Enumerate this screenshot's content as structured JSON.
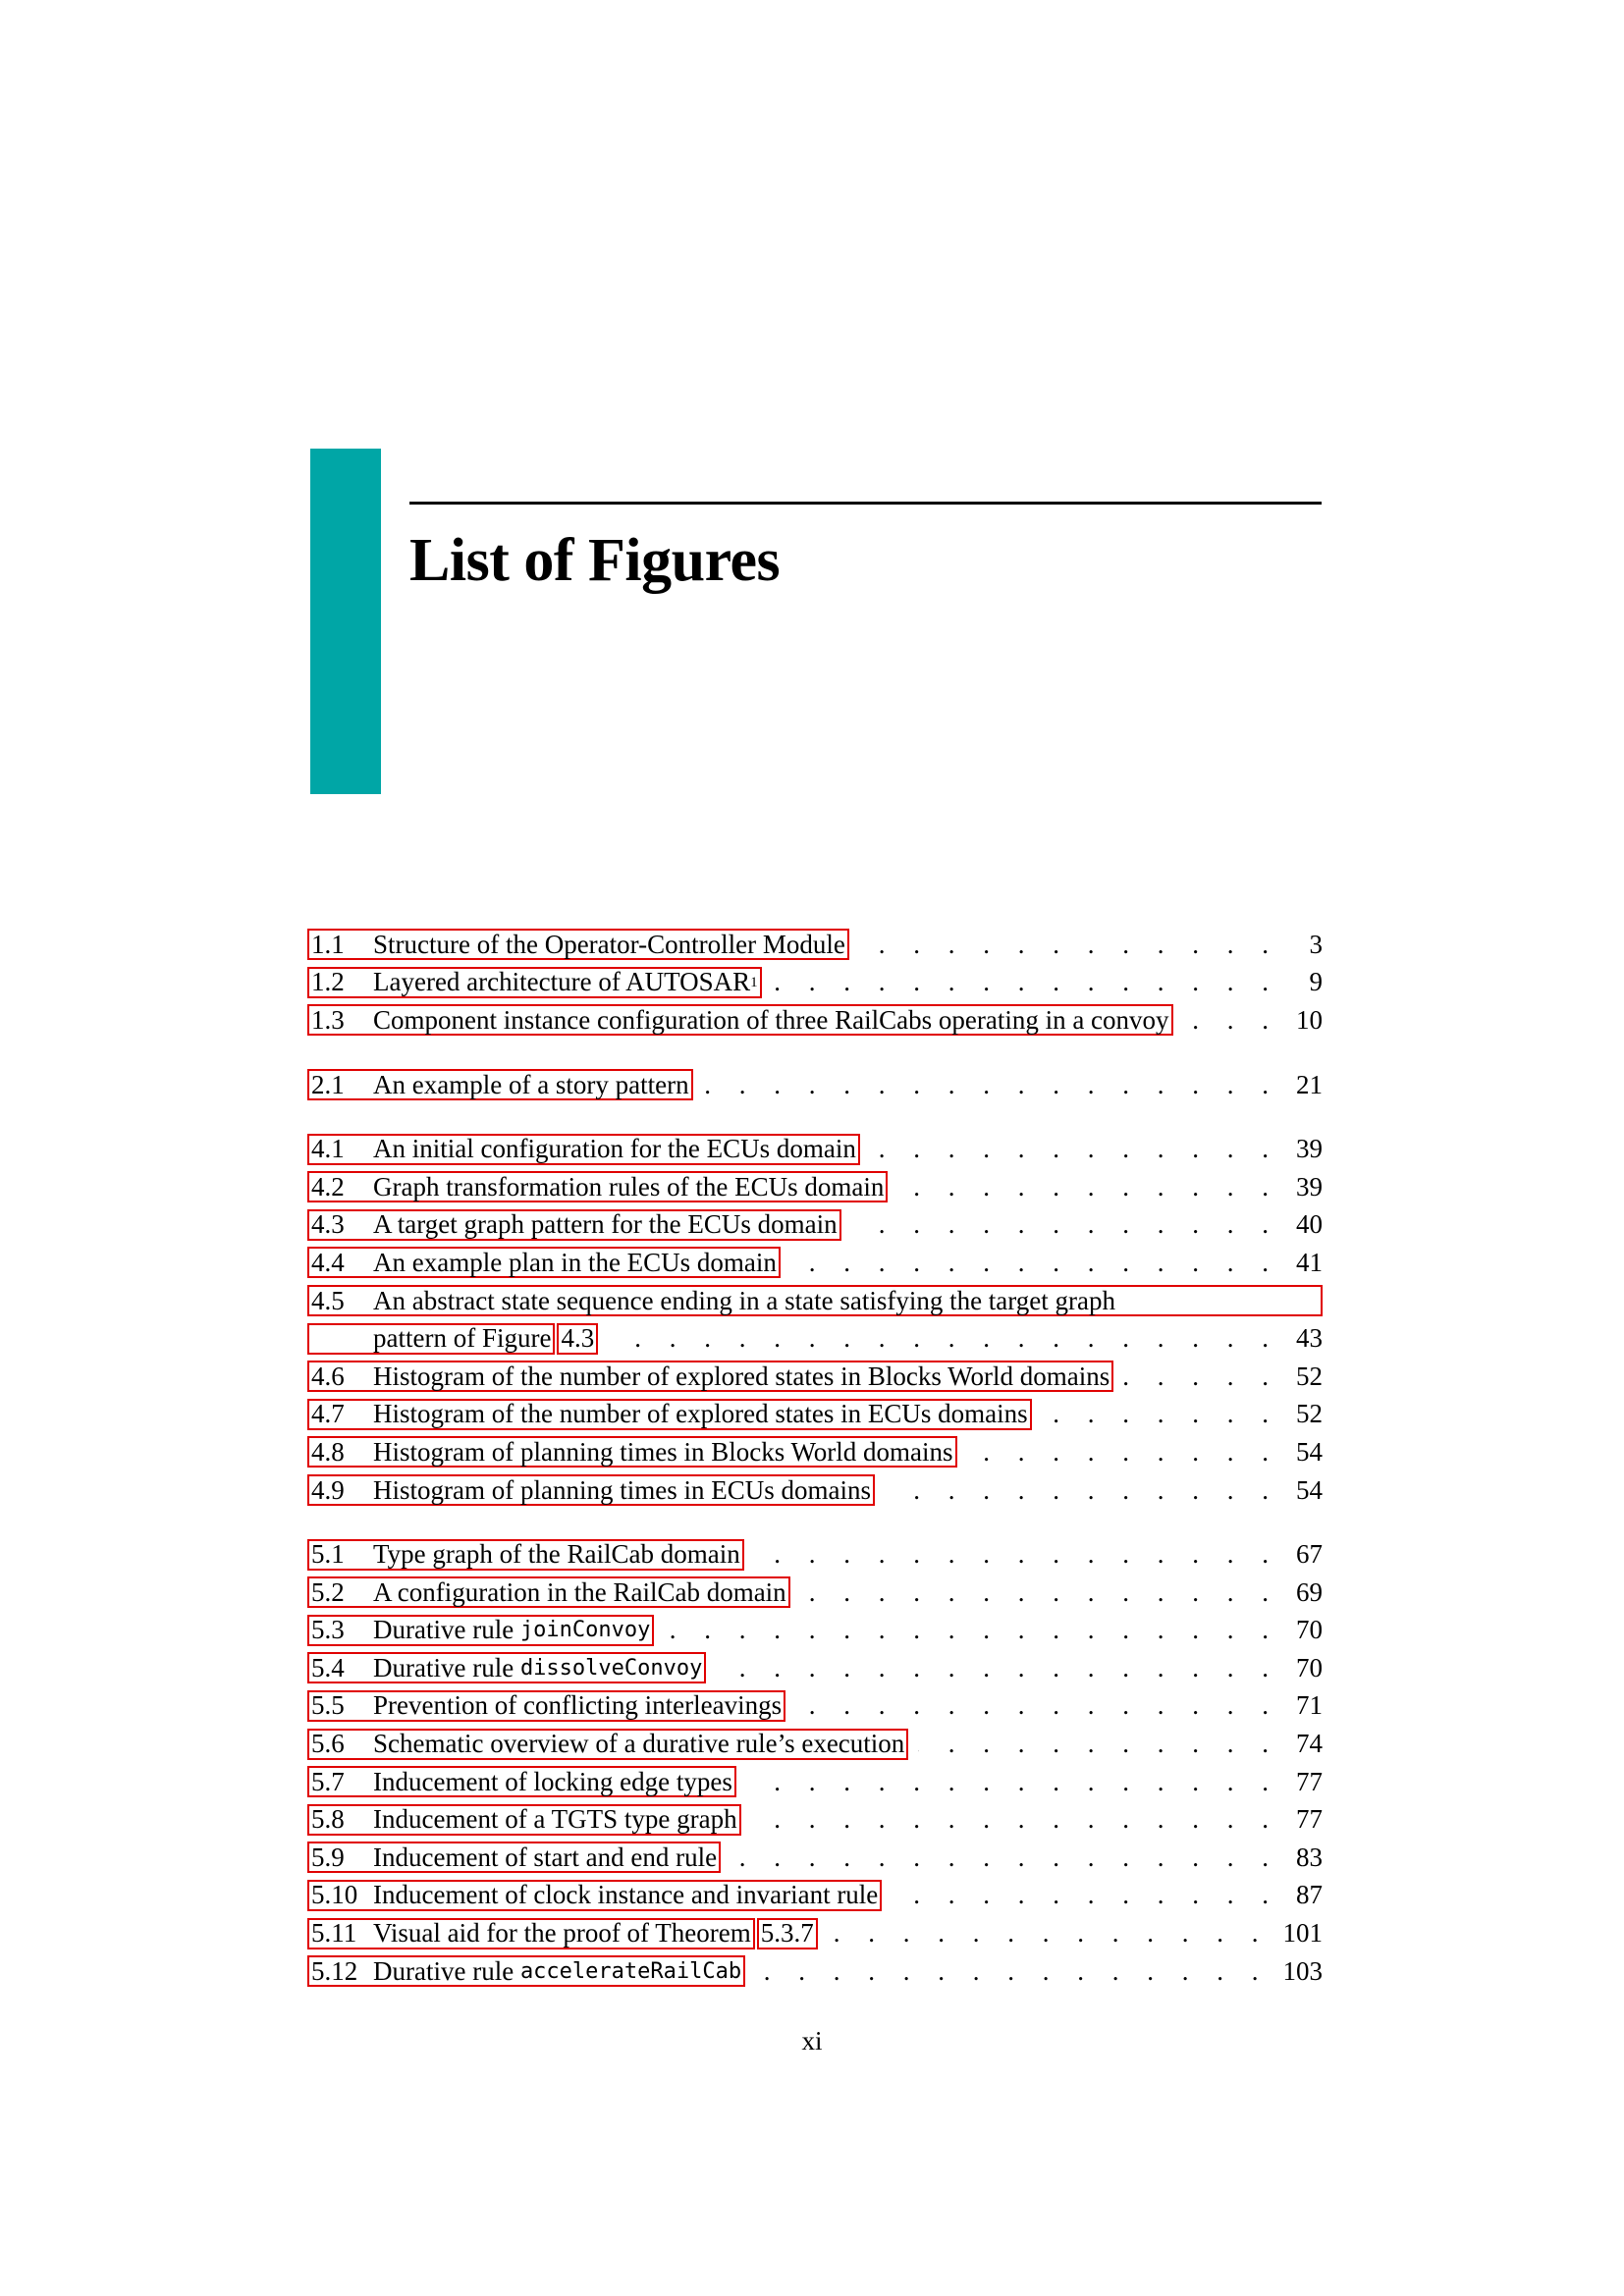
{
  "accent_color": "#00a6a6",
  "link_border_color": "#e00000",
  "heading": "List of Figures",
  "groups": [
    [
      {
        "num": "1.1",
        "title": "Structure of the Operator-Controller Module",
        "page": "3"
      },
      {
        "num": "1.2",
        "title": "Layered architecture of AUTOSAR",
        "sup": "1",
        "page": "9"
      },
      {
        "num": "1.3",
        "title": "Component instance configuration of three RailCabs operating in a convoy",
        "page": "10"
      }
    ],
    [
      {
        "num": "2.1",
        "title": "An example of a story pattern",
        "page": "21"
      }
    ],
    [
      {
        "num": "4.1",
        "title": "An initial configuration for the ECUs domain",
        "page": "39"
      },
      {
        "num": "4.2",
        "title": "Graph transformation rules of the ECUs domain",
        "page": "39"
      },
      {
        "num": "4.3",
        "title": "A target graph pattern for the ECUs domain",
        "page": "40"
      },
      {
        "num": "4.4",
        "title": "An example plan in the ECUs domain",
        "page": "41"
      },
      {
        "num": "4.5",
        "title": "An abstract state sequence ending in a state satisfying the target graph",
        "title2": "pattern of Figure",
        "ref": "4.3",
        "page": "43"
      },
      {
        "num": "4.6",
        "title": "Histogram of the number of explored states in Blocks World domains",
        "page": "52"
      },
      {
        "num": "4.7",
        "title": "Histogram of the number of explored states in ECUs domains",
        "page": "52"
      },
      {
        "num": "4.8",
        "title": "Histogram of planning times in Blocks World domains",
        "page": "54"
      },
      {
        "num": "4.9",
        "title": "Histogram of planning times in ECUs domains",
        "page": "54"
      }
    ],
    [
      {
        "num": "5.1",
        "title": "Type graph of the RailCab domain",
        "page": "67"
      },
      {
        "num": "5.2",
        "title": "A configuration in the RailCab domain",
        "page": "69"
      },
      {
        "num": "5.3",
        "title": "Durative rule ",
        "code": "joinConvoy",
        "page": "70"
      },
      {
        "num": "5.4",
        "title": "Durative rule ",
        "code": "dissolveConvoy",
        "page": "70"
      },
      {
        "num": "5.5",
        "title": "Prevention of conflicting interleavings",
        "page": "71"
      },
      {
        "num": "5.6",
        "title": "Schematic overview of a durative rule’s execution",
        "page": "74"
      },
      {
        "num": "5.7",
        "title": "Inducement of locking edge types",
        "page": "77"
      },
      {
        "num": "5.8",
        "title": "Inducement of a TGTS type graph",
        "page": "77"
      },
      {
        "num": "5.9",
        "title": "Inducement of start and end rule",
        "page": "83"
      },
      {
        "num": "5.10",
        "title": "Inducement of clock instance and invariant rule",
        "page": "87"
      },
      {
        "num": "5.11",
        "title": "Visual aid for the proof of Theorem",
        "ref": "5.3.7",
        "page": "101"
      },
      {
        "num": "5.12",
        "title": "Durative rule ",
        "code": "accelerateRailCab",
        "page": "103"
      }
    ]
  ],
  "footer": {
    "page_number": "xi"
  }
}
